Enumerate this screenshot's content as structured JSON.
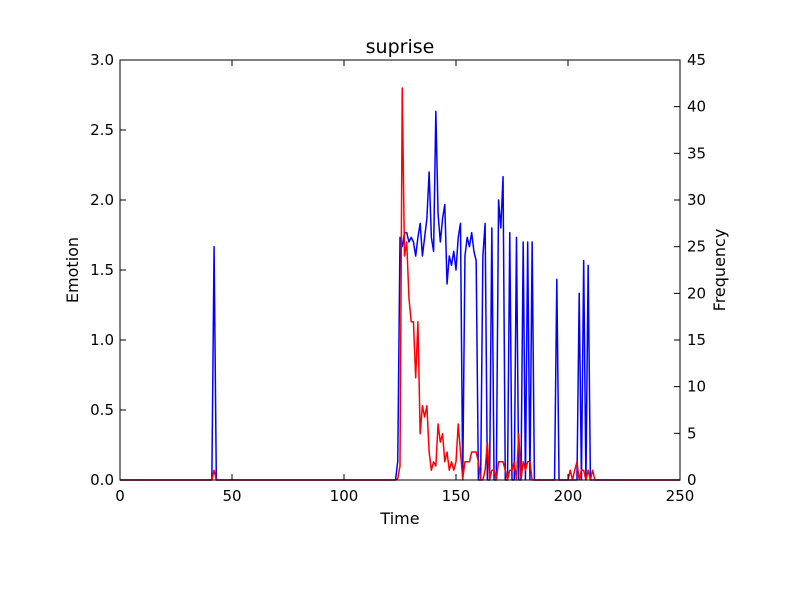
{
  "chart_data": {
    "type": "line",
    "title": "suprise",
    "xlabel": "Time",
    "ylabel_left": "Emotion",
    "ylabel_right": "Frequency",
    "xlim": [
      0,
      250
    ],
    "ylim_left": [
      0,
      3.0
    ],
    "ylim_right": [
      0,
      45
    ],
    "xticks": [
      "0",
      "50",
      "100",
      "150",
      "200",
      "250"
    ],
    "yticks_left": [
      "0.0",
      "0.5",
      "1.0",
      "1.5",
      "2.0",
      "2.5",
      "3.0"
    ],
    "yticks_right": [
      "0",
      "5",
      "10",
      "15",
      "20",
      "25",
      "30",
      "35",
      "40",
      "45"
    ],
    "grid": false,
    "series": [
      {
        "axis": "right",
        "color": "#0000ff",
        "x": [
          0,
          40,
          41,
          42,
          43,
          44,
          45,
          123,
          124,
          125,
          126,
          127,
          128,
          129,
          130,
          131,
          132,
          133,
          134,
          135,
          136,
          137,
          138,
          139,
          140,
          141,
          142,
          143,
          144,
          145,
          146,
          147,
          148,
          149,
          150,
          151,
          152,
          153,
          154,
          155,
          156,
          157,
          158,
          159,
          160,
          161,
          162,
          163,
          164,
          165,
          166,
          167,
          168,
          169,
          170,
          171,
          172,
          173,
          174,
          175,
          176,
          177,
          178,
          179,
          180,
          181,
          182,
          183,
          184,
          185,
          186,
          187,
          188,
          194,
          195,
          196,
          204,
          205,
          206,
          207,
          208,
          209,
          210,
          211,
          212,
          250
        ],
        "y": [
          0,
          0,
          0,
          25,
          0,
          0,
          0,
          0,
          2,
          26,
          25,
          26.5,
          26.5,
          25.5,
          26,
          25.5,
          24,
          26,
          27.5,
          24,
          26,
          28,
          33,
          26,
          24.5,
          39.5,
          28.5,
          25.5,
          28,
          29.5,
          21,
          24,
          23,
          24.5,
          22.5,
          26,
          27.5,
          0,
          24,
          26,
          25,
          26.5,
          24.5,
          23.5,
          0,
          0,
          24,
          27.5,
          0,
          0,
          27,
          0,
          0,
          30,
          27,
          32.5,
          0,
          0,
          26.5,
          0,
          0,
          26,
          0,
          0,
          25.5,
          0,
          25.5,
          0,
          25.5,
          0,
          0,
          0,
          0,
          0,
          21.5,
          0,
          0,
          20,
          0,
          23.5,
          0,
          23,
          0,
          0,
          0,
          0
        ]
      },
      {
        "axis": "left",
        "color": "#ff0000",
        "x": [
          0,
          41,
          42,
          43,
          44,
          123,
          124,
          125,
          126,
          127,
          128,
          129,
          130,
          131,
          132,
          133,
          134,
          135,
          136,
          137,
          138,
          139,
          140,
          141,
          142,
          143,
          144,
          145,
          146,
          147,
          148,
          149,
          150,
          151,
          152,
          153,
          154,
          155,
          156,
          157,
          158,
          159,
          160,
          161,
          162,
          163,
          164,
          165,
          166,
          167,
          168,
          169,
          170,
          171,
          172,
          173,
          174,
          175,
          176,
          177,
          178,
          179,
          180,
          181,
          182,
          183,
          184,
          185,
          186,
          187,
          188,
          200,
          201,
          202,
          203,
          204,
          205,
          206,
          207,
          208,
          209,
          210,
          211,
          212,
          213,
          214,
          250
        ],
        "y": [
          0,
          0,
          0.07,
          0,
          0,
          0,
          0.01,
          0.1,
          2.8,
          1.6,
          1.7,
          1.3,
          1.13,
          1.13,
          0.73,
          1.13,
          0.33,
          0.53,
          0.45,
          0.53,
          0.2,
          0.07,
          0.13,
          0.1,
          0.4,
          0.27,
          0.33,
          0.13,
          0.2,
          0.07,
          0.13,
          0.07,
          0.13,
          0.4,
          0.2,
          0.01,
          0.13,
          0.13,
          0.13,
          0.2,
          0.2,
          0.2,
          0.13,
          0,
          0,
          0.07,
          0.27,
          0,
          0.07,
          0.07,
          0,
          0.13,
          0.13,
          0.13,
          0.07,
          0,
          0.07,
          0.07,
          0.13,
          0,
          0.33,
          0,
          0.13,
          0.07,
          0.13,
          0.13,
          0,
          0,
          0,
          0,
          0,
          0,
          0.07,
          0,
          0.07,
          0.13,
          0,
          0.07,
          0.07,
          0,
          0.07,
          0,
          0.07,
          0,
          0,
          0,
          0
        ]
      }
    ]
  }
}
